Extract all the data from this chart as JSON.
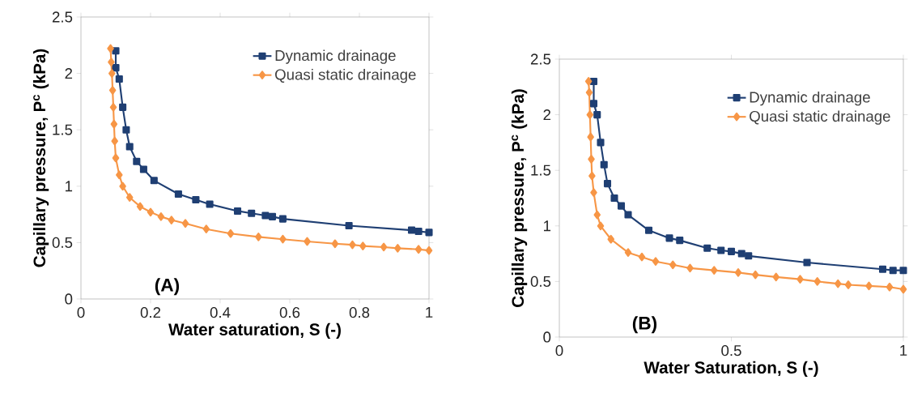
{
  "chart_data": [
    {
      "type": "line",
      "xlabel": "Water saturation, S (-)",
      "ylabel": "Capillary pressure, P$^{c}$ (kPa)",
      "annotations": [
        "(A)"
      ],
      "legend": "top right",
      "grid": false,
      "xlim": [
        0,
        1
      ],
      "ylim": [
        0,
        2.5
      ],
      "xticks": [
        0,
        0.2,
        0.4,
        0.6,
        0.8,
        1
      ],
      "yticks": [
        0,
        0.5,
        1,
        1.5,
        2,
        2.5
      ],
      "series": [
        {
          "name": "Dynamic drainage",
          "color": "#1f3f73",
          "marker": "square",
          "x": [
            0.1,
            0.1,
            0.11,
            0.12,
            0.13,
            0.14,
            0.16,
            0.18,
            0.21,
            0.28,
            0.33,
            0.37,
            0.45,
            0.49,
            0.53,
            0.55,
            0.58,
            0.77,
            0.95,
            0.97,
            1.0
          ],
          "values": [
            2.2,
            2.05,
            1.95,
            1.7,
            1.5,
            1.35,
            1.22,
            1.15,
            1.05,
            0.93,
            0.88,
            0.84,
            0.78,
            0.76,
            0.74,
            0.73,
            0.71,
            0.65,
            0.61,
            0.6,
            0.59
          ]
        },
        {
          "name": "Quasi static drainage",
          "color": "#f79646",
          "marker": "diamond",
          "x": [
            0.085,
            0.087,
            0.089,
            0.091,
            0.093,
            0.095,
            0.097,
            0.1,
            0.11,
            0.12,
            0.14,
            0.17,
            0.2,
            0.23,
            0.26,
            0.3,
            0.36,
            0.43,
            0.51,
            0.58,
            0.65,
            0.73,
            0.78,
            0.81,
            0.87,
            0.91,
            0.97,
            1.0
          ],
          "values": [
            2.22,
            2.1,
            2.0,
            1.85,
            1.7,
            1.55,
            1.4,
            1.25,
            1.1,
            1.0,
            0.9,
            0.82,
            0.77,
            0.73,
            0.7,
            0.67,
            0.62,
            0.58,
            0.55,
            0.53,
            0.51,
            0.49,
            0.48,
            0.47,
            0.46,
            0.45,
            0.44,
            0.43
          ]
        }
      ]
    },
    {
      "type": "line",
      "xlabel": "Water Saturation, S (-)",
      "ylabel": "Capillary pressure, P$^{c}$ (kPa)",
      "annotations": [
        "(B)"
      ],
      "legend": "top right",
      "grid": false,
      "xlim": [
        0,
        1
      ],
      "ylim": [
        0,
        2.5
      ],
      "xticks": [
        0,
        0.5,
        1
      ],
      "yticks": [
        0,
        0.5,
        1,
        1.5,
        2,
        2.5
      ],
      "series": [
        {
          "name": "Dynamic drainage",
          "color": "#1f3f73",
          "marker": "square",
          "x": [
            0.1,
            0.1,
            0.11,
            0.12,
            0.13,
            0.14,
            0.16,
            0.18,
            0.2,
            0.26,
            0.32,
            0.35,
            0.43,
            0.47,
            0.5,
            0.53,
            0.55,
            0.72,
            0.94,
            0.97,
            1.0
          ],
          "values": [
            2.3,
            2.1,
            2.0,
            1.75,
            1.55,
            1.38,
            1.25,
            1.18,
            1.1,
            0.96,
            0.89,
            0.87,
            0.8,
            0.78,
            0.77,
            0.75,
            0.73,
            0.67,
            0.61,
            0.6,
            0.6
          ]
        },
        {
          "name": "Quasi static drainage",
          "color": "#f79646",
          "marker": "diamond",
          "x": [
            0.085,
            0.087,
            0.089,
            0.091,
            0.093,
            0.095,
            0.1,
            0.11,
            0.12,
            0.15,
            0.2,
            0.24,
            0.28,
            0.33,
            0.38,
            0.45,
            0.52,
            0.57,
            0.63,
            0.7,
            0.75,
            0.81,
            0.84,
            0.9,
            0.96,
            1.0
          ],
          "values": [
            2.3,
            2.2,
            2.0,
            1.8,
            1.6,
            1.45,
            1.3,
            1.1,
            1.0,
            0.88,
            0.76,
            0.72,
            0.68,
            0.65,
            0.62,
            0.6,
            0.58,
            0.56,
            0.54,
            0.52,
            0.5,
            0.48,
            0.47,
            0.46,
            0.45,
            0.43
          ]
        }
      ]
    }
  ]
}
